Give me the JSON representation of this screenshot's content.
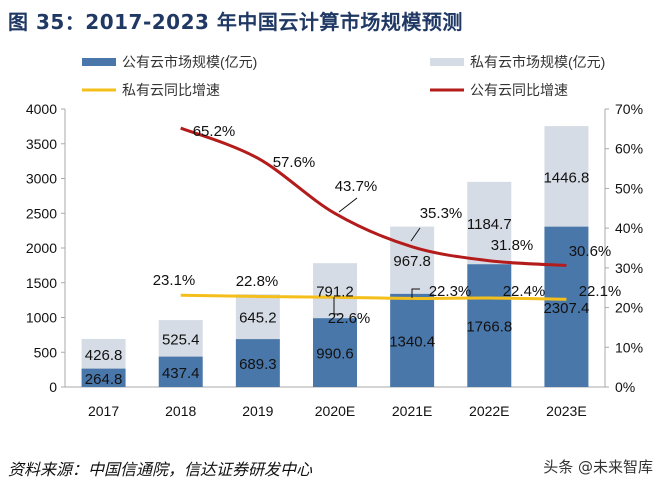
{
  "title": "图 35：2017-2023 年中国云计算市场规模预测",
  "source": "资料来源：中国信通院，信达证券研发中心",
  "watermark": "头条 @未来智库",
  "chart_data": {
    "type": "bar",
    "stacked": true,
    "categories": [
      "2017",
      "2018",
      "2019",
      "2020E",
      "2021E",
      "2022E",
      "2023E"
    ],
    "left_axis": {
      "min": 0,
      "max": 4000,
      "ticks": [
        "0",
        "500",
        "1000",
        "1500",
        "2000",
        "2500",
        "3000",
        "3500",
        "4000"
      ]
    },
    "right_axis": {
      "min": 0,
      "max": 70,
      "ticks": [
        "0%",
        "10%",
        "20%",
        "30%",
        "40%",
        "50%",
        "60%",
        "70%"
      ]
    },
    "grid": false,
    "legend_position": "top",
    "series": [
      {
        "name": "公有云市场规模(亿元)",
        "kind": "bar",
        "color": "#4a77aa",
        "values": [
          264.8,
          437.4,
          689.3,
          990.6,
          1340.4,
          1766.8,
          2307.4
        ],
        "labels": [
          "264.8",
          "437.4",
          "689.3",
          "990.6",
          "1340.4",
          "1766.8",
          "2307.4"
        ]
      },
      {
        "name": "私有云市场规模(亿元)",
        "kind": "bar",
        "color": "#d6dce5",
        "values": [
          426.8,
          525.4,
          645.2,
          791.2,
          967.8,
          1184.7,
          1446.8
        ],
        "labels": [
          "426.8",
          "525.4",
          "645.2",
          "791.2",
          "967.8",
          "1184.7",
          "1446.8"
        ]
      },
      {
        "name": "私有云同比增速",
        "kind": "line",
        "axis": "right",
        "color": "#f5bf1b",
        "values": [
          null,
          23.1,
          22.8,
          22.6,
          22.3,
          22.4,
          22.1
        ],
        "labels": [
          "",
          "23.1%",
          "22.8%",
          "22.6%",
          "22.3%",
          "22.4%",
          "22.1%"
        ]
      },
      {
        "name": "公有云同比增速",
        "kind": "line",
        "axis": "right",
        "color": "#b41b1b",
        "values": [
          null,
          65.2,
          57.6,
          43.7,
          35.3,
          31.8,
          30.6
        ],
        "labels": [
          "",
          "65.2%",
          "57.6%",
          "43.7%",
          "35.3%",
          "31.8%",
          "30.6%"
        ]
      }
    ]
  }
}
